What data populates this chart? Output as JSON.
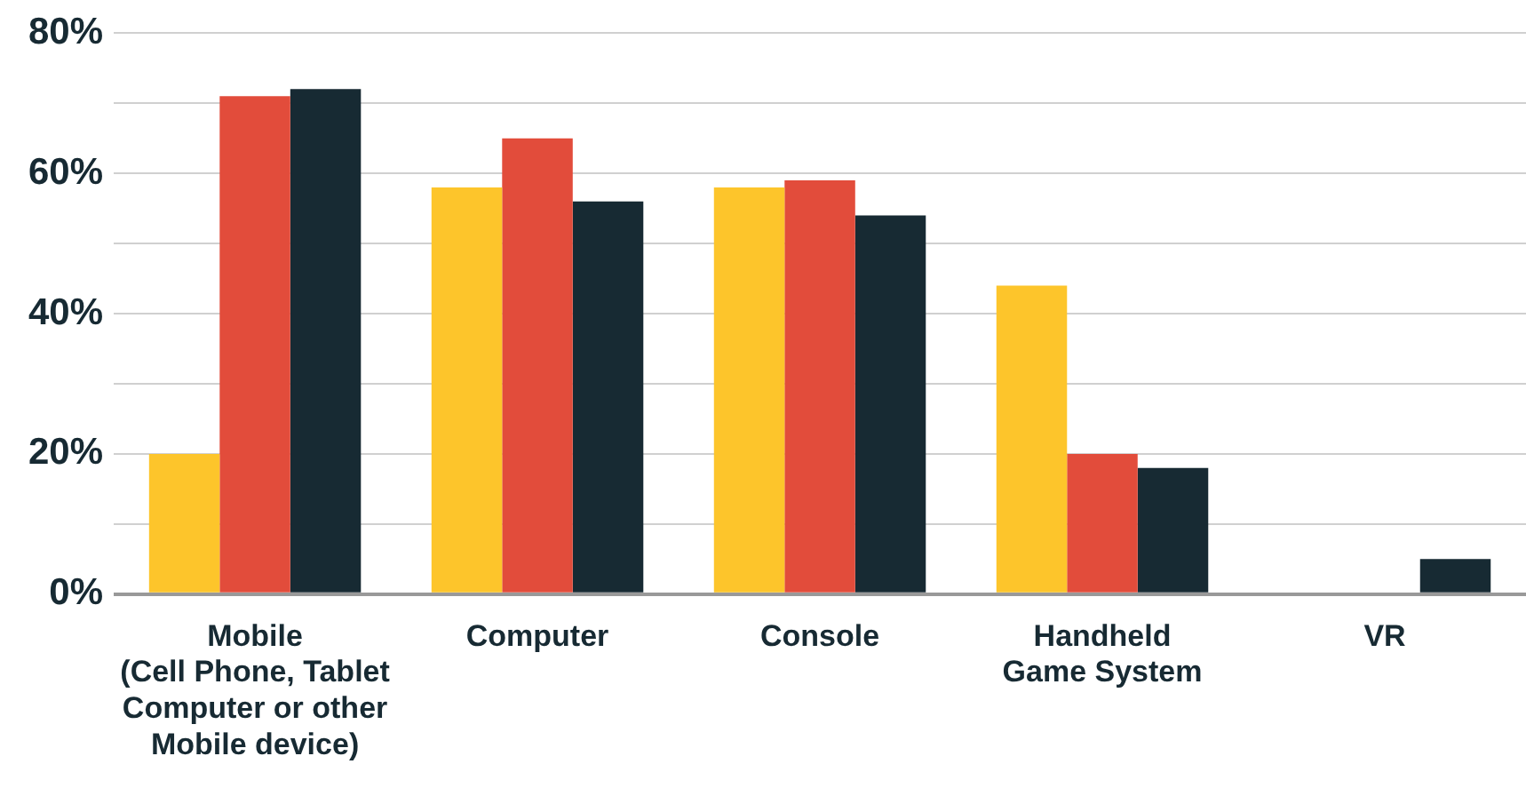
{
  "chart_data": {
    "type": "bar",
    "categories": [
      "Mobile\n(Cell Phone, Tablet\nComputer or other\nMobile device)",
      "Computer",
      "Console",
      "Handheld\nGame System",
      "VR"
    ],
    "series": [
      {
        "color": "#fdc52b",
        "values": [
          20,
          58,
          58,
          44,
          0
        ]
      },
      {
        "color": "#e24c3b",
        "values": [
          71,
          65,
          59,
          20,
          0
        ]
      },
      {
        "color": "#172a33",
        "values": [
          72,
          56,
          54,
          18,
          5
        ]
      }
    ],
    "ylim": [
      0,
      80
    ],
    "yticks": [
      {
        "value": 0,
        "label": "0%"
      },
      {
        "value": 10,
        "label": null
      },
      {
        "value": 20,
        "label": "20%"
      },
      {
        "value": 30,
        "label": null
      },
      {
        "value": 40,
        "label": "40%"
      },
      {
        "value": 50,
        "label": null
      },
      {
        "value": 60,
        "label": "60%"
      },
      {
        "value": 70,
        "label": null
      },
      {
        "value": 80,
        "label": "80%"
      }
    ],
    "grid": "y",
    "legend": false
  }
}
